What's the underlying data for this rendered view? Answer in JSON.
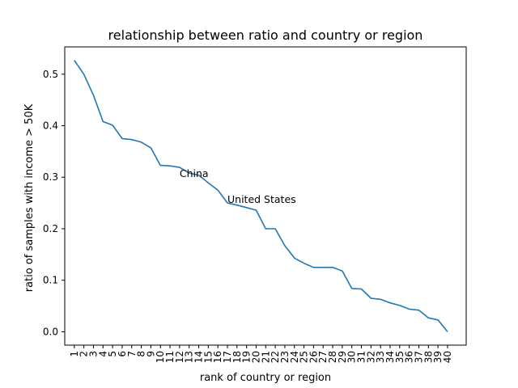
{
  "chart_data": {
    "type": "line",
    "title": "relationship between ratio and country or region",
    "xlabel": "rank of country or region",
    "ylabel": "ratio of samples with income > 50K",
    "x": [
      1,
      2,
      3,
      4,
      5,
      6,
      7,
      8,
      9,
      10,
      11,
      12,
      13,
      14,
      15,
      16,
      17,
      18,
      19,
      20,
      21,
      22,
      23,
      24,
      25,
      26,
      27,
      28,
      29,
      30,
      31,
      32,
      33,
      34,
      35,
      36,
      37,
      38,
      39,
      40
    ],
    "series": [
      {
        "color": "#1f77b4",
        "values": [
          0.527,
          0.5,
          0.459,
          0.408,
          0.401,
          0.375,
          0.373,
          0.368,
          0.357,
          0.323,
          0.322,
          0.319,
          0.308,
          0.304,
          0.289,
          0.275,
          0.25,
          0.246,
          0.241,
          0.236,
          0.2,
          0.2,
          0.167,
          0.143,
          0.133,
          0.125,
          0.125,
          0.125,
          0.118,
          0.084,
          0.083,
          0.065,
          0.063,
          0.056,
          0.051,
          0.044,
          0.042,
          0.027,
          0.023,
          0.0
        ]
      }
    ],
    "annotations": [
      {
        "text": "China",
        "x": 12,
        "y": 0.3
      },
      {
        "text": "United States",
        "x": 17,
        "y": 0.25
      }
    ],
    "xlim": [
      0,
      41.95
    ],
    "ylim": [
      -0.026,
      0.553
    ],
    "yticks": [
      0.0,
      0.1,
      0.2,
      0.3,
      0.4,
      0.5
    ],
    "ytick_labels": [
      "0.0",
      "0.1",
      "0.2",
      "0.3",
      "0.4",
      "0.5"
    ],
    "xtick_labels": [
      "1",
      "2",
      "3",
      "4",
      "5",
      "6",
      "7",
      "8",
      "9",
      "10",
      "11",
      "12",
      "13",
      "14",
      "15",
      "16",
      "17",
      "18",
      "19",
      "20",
      "21",
      "22",
      "23",
      "24",
      "25",
      "26",
      "27",
      "28",
      "29",
      "30",
      "31",
      "32",
      "33",
      "34",
      "35",
      "36",
      "37",
      "38",
      "39",
      "40"
    ],
    "grid": false,
    "legend": "none"
  }
}
